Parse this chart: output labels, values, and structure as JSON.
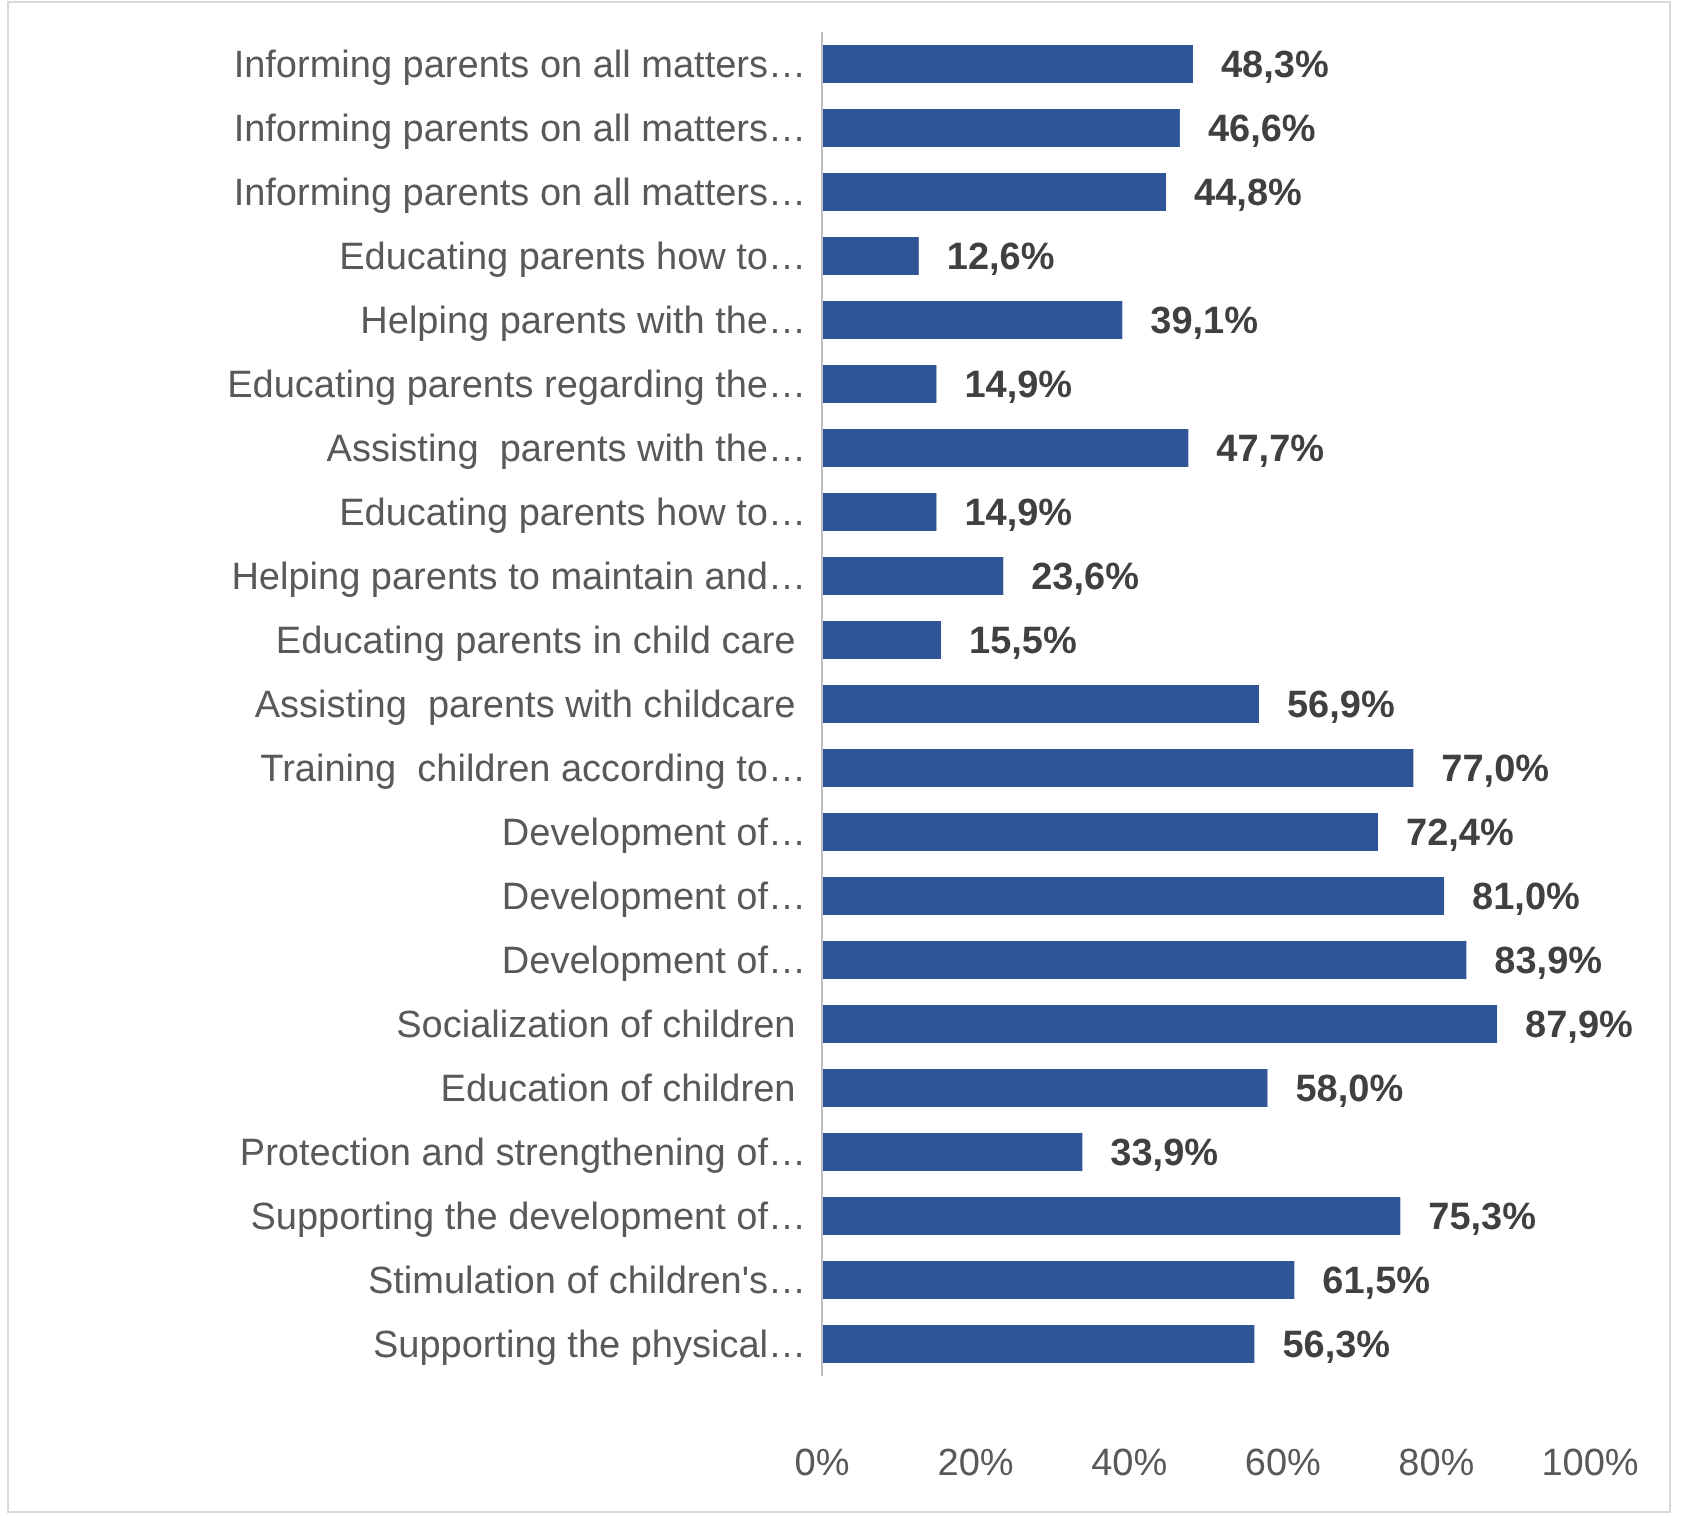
{
  "chart_data": {
    "type": "bar",
    "orientation": "horizontal",
    "categories": [
      "Informing parents on all matters…",
      "Informing parents on all matters…",
      "Informing parents on all matters…",
      "Educating parents how to…",
      "Helping parents with the…",
      "Educating parents regarding the…",
      "Assisting  parents with the…",
      "Educating parents how to…",
      "Helping parents to maintain and…",
      "Educating parents in child care ",
      "Assisting  parents with childcare ",
      "Training  children according to…",
      "Development of…",
      "Development of…",
      "Development of…",
      "Socialization of children ",
      "Education of children ",
      "Protection and strengthening of…",
      "Supporting the development of…",
      "Stimulation of children's…",
      "Supporting the physical…"
    ],
    "values": [
      48.3,
      46.6,
      44.8,
      12.6,
      39.1,
      14.9,
      47.7,
      14.9,
      23.6,
      15.5,
      56.9,
      77.0,
      72.4,
      81.0,
      83.9,
      87.9,
      58.0,
      33.9,
      75.3,
      61.5,
      56.3
    ],
    "value_labels": [
      "48,3%",
      "46,6%",
      "44,8%",
      "12,6%",
      "39,1%",
      "14,9%",
      "47,7%",
      "14,9%",
      "23,6%",
      "15,5%",
      "56,9%",
      "77,0%",
      "72,4%",
      "81,0%",
      "83,9%",
      "87,9%",
      "58,0%",
      "33,9%",
      "75,3%",
      "61,5%",
      "56,3%"
    ],
    "color": "#2f5597",
    "xlim": [
      0,
      100
    ],
    "xticks": [
      {
        "value": 0,
        "label": "0%"
      },
      {
        "value": 20,
        "label": "20%"
      },
      {
        "value": 40,
        "label": "40%"
      },
      {
        "value": 60,
        "label": "60%"
      },
      {
        "value": 80,
        "label": "80%"
      },
      {
        "value": 100,
        "label": "100%"
      }
    ],
    "grid": false
  }
}
